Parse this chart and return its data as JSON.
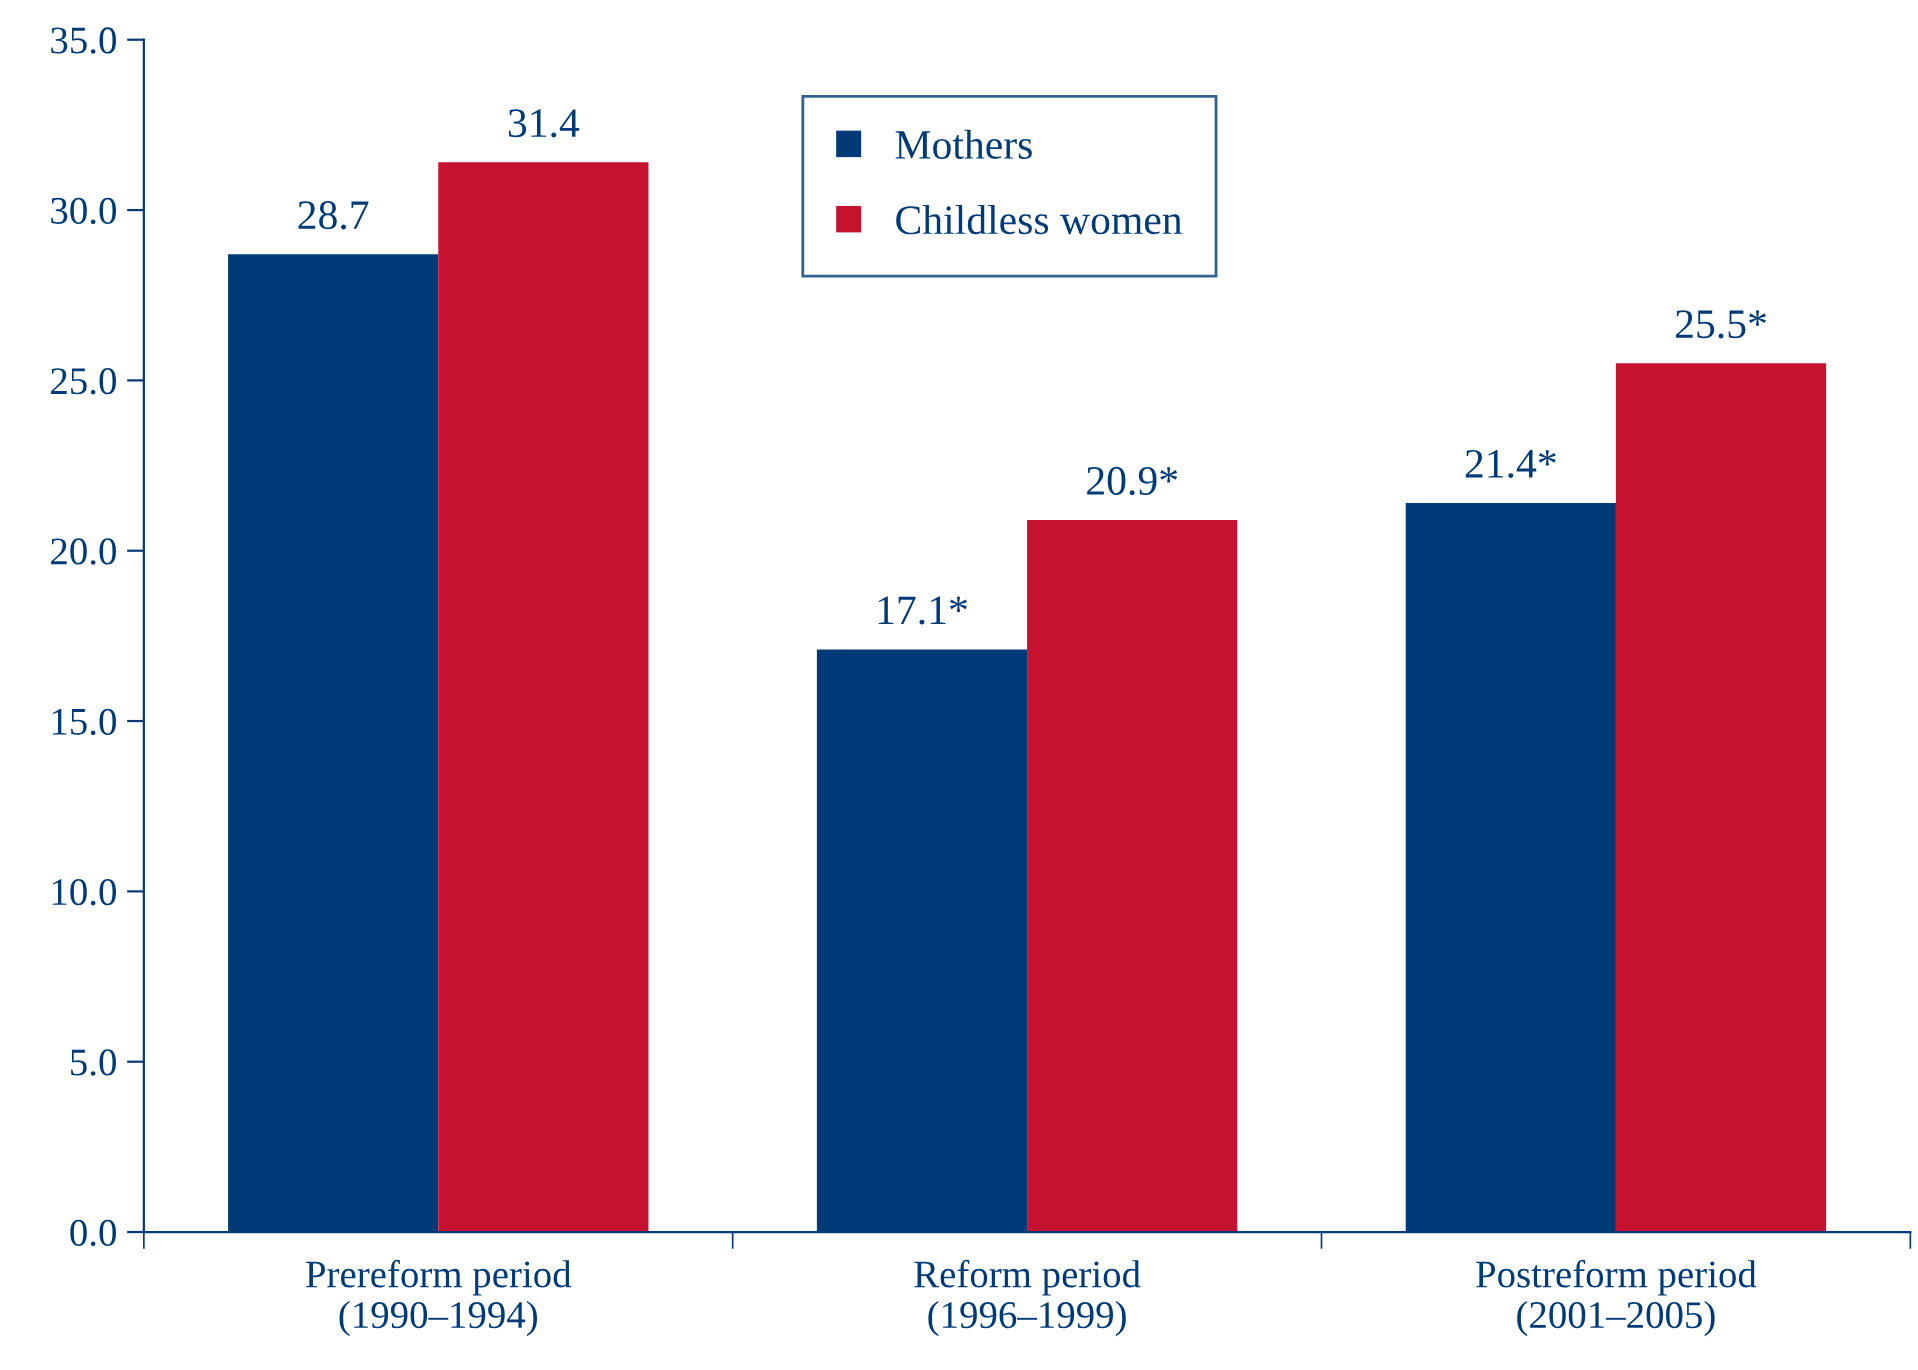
{
  "chart_data": {
    "type": "bar",
    "categories": [
      "Prereform period\n(1990–1994)",
      "Reform period\n(1996–1999)",
      "Postreform period\n(2001–2005)"
    ],
    "series": [
      {
        "name": "Mothers",
        "color": "#003b78",
        "values": [
          28.7,
          17.1,
          21.4
        ],
        "value_labels": [
          "28.7",
          "17.1*",
          "21.4*"
        ]
      },
      {
        "name": "Childless women",
        "color": "#c41230",
        "values": [
          31.4,
          20.9,
          25.5
        ],
        "value_labels": [
          "31.4",
          "20.9*",
          "25.5*"
        ]
      }
    ],
    "ylim": [
      0,
      35
    ],
    "yticks": [
      {
        "value": 0,
        "label": "0.0"
      },
      {
        "value": 5,
        "label": "5.0"
      },
      {
        "value": 10,
        "label": "10.0"
      },
      {
        "value": 15,
        "label": "15.0"
      },
      {
        "value": 20,
        "label": "20.0"
      },
      {
        "value": 25,
        "label": "25.0"
      },
      {
        "value": 30,
        "label": "30.0"
      },
      {
        "value": 35,
        "label": "35.0"
      }
    ],
    "grid": false,
    "legend": "top"
  }
}
